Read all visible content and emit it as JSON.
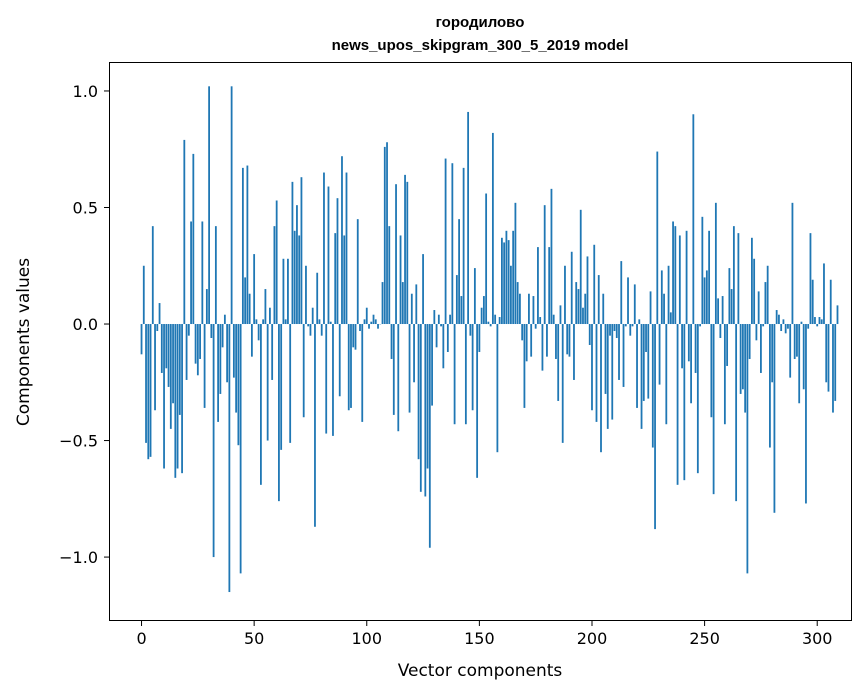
{
  "chart_data": {
    "type": "bar",
    "title_line1": "городилово",
    "title_line2": "news_upos_skipgram_300_5_2019 model",
    "xlabel": "Vector components",
    "ylabel": "Components values",
    "xlim": [
      -14,
      315
    ],
    "ylim": [
      -1.27,
      1.12
    ],
    "xticks": [
      0,
      50,
      100,
      150,
      200,
      250,
      300
    ],
    "xtick_labels": [
      "0",
      "50",
      "100",
      "150",
      "200",
      "250",
      "300"
    ],
    "yticks": [
      1.0,
      0.5,
      0.0,
      -0.5,
      -1.0
    ],
    "ytick_labels": [
      "1.0",
      "0.5",
      "0.0",
      "−0.5",
      "−1.0"
    ],
    "bar_color": "#1f77b4",
    "values": [
      -0.13,
      0.25,
      -0.51,
      -0.58,
      -0.57,
      0.42,
      -0.37,
      -0.03,
      0.09,
      -0.21,
      -0.62,
      -0.19,
      -0.27,
      -0.45,
      -0.34,
      -0.66,
      -0.62,
      -0.39,
      -0.64,
      0.79,
      -0.24,
      -0.05,
      0.44,
      0.73,
      -0.17,
      -0.22,
      -0.15,
      0.44,
      -0.36,
      0.15,
      1.02,
      -0.06,
      -1.0,
      0.42,
      -0.42,
      -0.3,
      -0.1,
      0.04,
      -0.25,
      -1.15,
      1.02,
      -0.23,
      -0.38,
      -0.52,
      -1.07,
      0.67,
      0.2,
      0.68,
      0.13,
      -0.14,
      0.3,
      0.02,
      -0.07,
      -0.69,
      0.02,
      0.15,
      -0.5,
      0.07,
      -0.24,
      0.42,
      0.53,
      -0.76,
      -0.54,
      0.28,
      0.02,
      0.28,
      -0.51,
      0.61,
      0.4,
      0.51,
      0.38,
      0.63,
      -0.4,
      0.25,
      -0.01,
      -0.05,
      0.07,
      -0.87,
      0.22,
      0.02,
      -0.05,
      0.65,
      -0.47,
      0.59,
      0.01,
      -0.48,
      0.39,
      0.54,
      -0.31,
      0.72,
      0.38,
      0.65,
      -0.37,
      -0.36,
      -0.1,
      -0.11,
      0.45,
      -0.03,
      -0.42,
      0.02,
      0.07,
      -0.02,
      0.01,
      0.04,
      0.02,
      -0.02,
      0.0,
      0.18,
      0.76,
      0.78,
      0.42,
      -0.15,
      -0.39,
      0.6,
      -0.46,
      0.38,
      0.18,
      0.64,
      0.61,
      -0.38,
      0.13,
      -0.25,
      0.17,
      -0.58,
      -0.72,
      0.3,
      -0.74,
      -0.62,
      -0.96,
      -0.35,
      0.06,
      -0.1,
      0.04,
      -0.01,
      -0.19,
      0.71,
      -0.12,
      0.04,
      0.69,
      -0.43,
      0.21,
      0.45,
      0.12,
      0.67,
      -0.43,
      0.91,
      -0.05,
      -0.37,
      0.24,
      -0.66,
      -0.12,
      0.07,
      0.12,
      0.56,
      0.01,
      -0.01,
      0.82,
      0.04,
      -0.55,
      0.03,
      0.37,
      0.35,
      0.4,
      0.36,
      0.25,
      0.4,
      0.52,
      0.18,
      0.13,
      -0.07,
      -0.36,
      -0.16,
      0.13,
      -0.14,
      0.12,
      -0.02,
      0.33,
      0.03,
      -0.2,
      0.51,
      -0.14,
      0.33,
      0.58,
      0.04,
      -0.15,
      -0.33,
      0.08,
      -0.51,
      0.25,
      -0.13,
      -0.14,
      0.31,
      -0.24,
      0.18,
      0.15,
      0.49,
      0.07,
      0.13,
      0.29,
      -0.09,
      -0.37,
      0.34,
      -0.42,
      0.21,
      -0.55,
      0.13,
      -0.3,
      -0.45,
      -0.05,
      -0.41,
      -0.03,
      -0.06,
      -0.24,
      0.27,
      -0.27,
      -0.01,
      0.2,
      -0.05,
      -0.01,
      0.17,
      -0.36,
      0.02,
      -0.45,
      -0.33,
      -0.12,
      -0.32,
      0.14,
      -0.53,
      -0.88,
      0.74,
      -0.26,
      0.23,
      0.13,
      -0.43,
      0.25,
      0.05,
      0.44,
      0.42,
      -0.69,
      0.38,
      -0.19,
      -0.67,
      0.4,
      -0.16,
      -0.34,
      0.9,
      -0.21,
      -0.64,
      -0.01,
      0.46,
      0.2,
      0.23,
      0.4,
      -0.4,
      -0.73,
      0.52,
      0.11,
      -0.06,
      0.12,
      -0.43,
      -0.18,
      0.24,
      0.15,
      0.42,
      -0.76,
      0.39,
      -0.3,
      -0.28,
      -0.38,
      -1.07,
      -0.15,
      0.37,
      0.28,
      -0.07,
      0.14,
      -0.21,
      -0.01,
      0.18,
      0.25,
      -0.53,
      -0.25,
      -0.81,
      0.06,
      0.04,
      -0.03,
      0.02,
      -0.04,
      -0.02,
      -0.23,
      0.52,
      -0.15,
      -0.14,
      -0.34,
      0.01,
      -0.28,
      -0.77,
      -0.02,
      0.39,
      0.19,
      0.03,
      -0.01,
      0.03,
      0.02,
      0.26,
      -0.25,
      -0.29,
      0.19,
      -0.38,
      -0.33,
      0.08
    ]
  }
}
